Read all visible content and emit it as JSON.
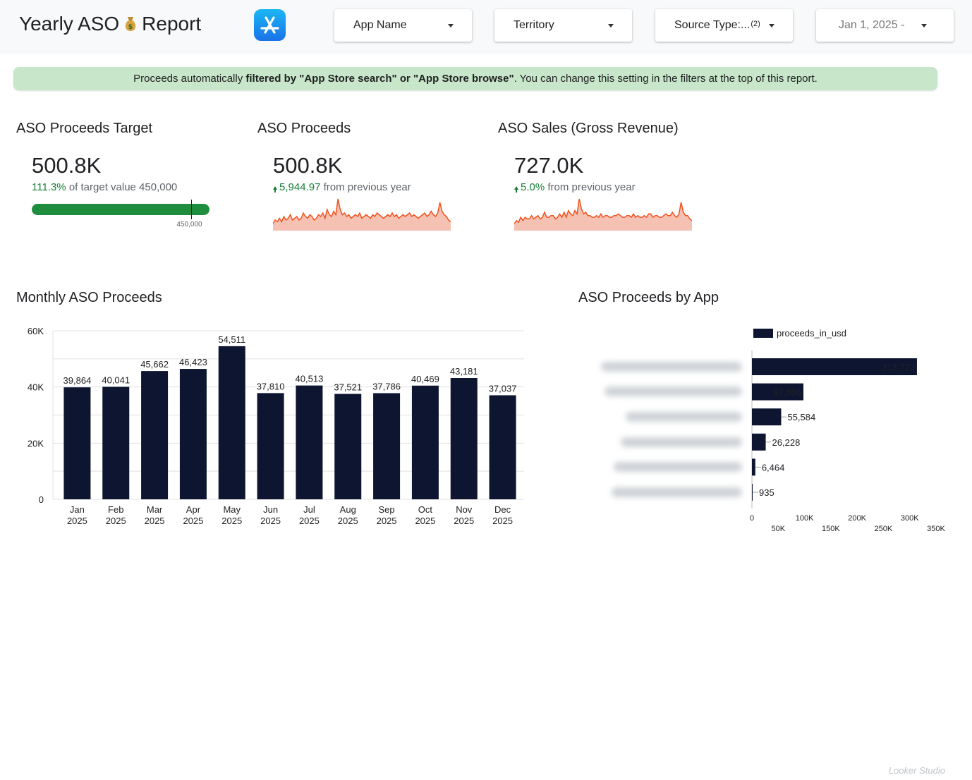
{
  "header": {
    "title_prefix": "Yearly ASO",
    "title_suffix": "Report",
    "emoji": "money-bag",
    "logo": "app-store-icon",
    "filters": [
      {
        "label": "App Name",
        "count": ""
      },
      {
        "label": "Territory",
        "count": ""
      },
      {
        "label": "Source Type:...",
        "count": "(2)"
      },
      {
        "label": "Jan 1, 2025 -",
        "count": ""
      }
    ]
  },
  "banner": {
    "text_before": "Proceeds automatically ",
    "text_bold": "filtered by \"App Store search\" or \"App Store browse\"",
    "text_after": ". You can change this setting in the filters at the top of this report."
  },
  "kpis": {
    "target": {
      "title": "ASO Proceeds Target",
      "value": "500.8K",
      "pct": "111.3%",
      "rest": "of target value 450,000",
      "progress": 1.113,
      "target_label": "450,000",
      "target_fraction": 0.8985
    },
    "proceeds": {
      "title": "ASO Proceeds",
      "value": "500.8K",
      "delta": "5,944.97",
      "rest": "from previous year"
    },
    "sales": {
      "title": "ASO Sales (Gross Revenue)",
      "value": "727.0K",
      "delta": "5.0%",
      "rest": "from previous year"
    }
  },
  "monthly": {
    "title": "Monthly ASO Proceeds"
  },
  "by_app": {
    "title": "ASO Proceeds by App",
    "legend": "proceeds_in_usd"
  },
  "colors": {
    "bar": "#0d1530",
    "spark_line": "#f4511e",
    "spark_fill": "#f5c1b2",
    "progress": "#1e8e3e",
    "banner": "#c8e6c9"
  },
  "chart_data": [
    {
      "type": "bar",
      "title": "Monthly ASO Proceeds",
      "categories": [
        "Jan 2025",
        "Feb 2025",
        "Mar 2025",
        "Apr 2025",
        "May 2025",
        "Jun 2025",
        "Jul 2025",
        "Aug 2025",
        "Sep 2025",
        "Oct 2025",
        "Nov 2025",
        "Dec 2025"
      ],
      "category_lines": [
        [
          "Jan",
          "2025"
        ],
        [
          "Feb",
          "2025"
        ],
        [
          "Mar",
          "2025"
        ],
        [
          "Apr",
          "2025"
        ],
        [
          "May",
          "2025"
        ],
        [
          "Jun",
          "2025"
        ],
        [
          "Jul",
          "2025"
        ],
        [
          "Aug",
          "2025"
        ],
        [
          "Sep",
          "2025"
        ],
        [
          "Oct",
          "2025"
        ],
        [
          "Nov",
          "2025"
        ],
        [
          "Dec",
          "2025"
        ]
      ],
      "values": [
        39864,
        40041,
        45662,
        46423,
        54511,
        37810,
        40513,
        37521,
        37786,
        40469,
        43181,
        37037
      ],
      "value_labels": [
        "39,864",
        "40,041",
        "45,662",
        "46,423",
        "54,511",
        "37,810",
        "40,513",
        "37,521",
        "37,786",
        "40,469",
        "43,181",
        "37,037"
      ],
      "ylim": [
        0,
        60000
      ],
      "yticks": [
        0,
        20000,
        40000,
        60000
      ],
      "ytick_labels": [
        "0",
        "20K",
        "40K",
        "60K"
      ],
      "grid": true
    },
    {
      "type": "bar",
      "orientation": "horizontal",
      "title": "ASO Proceeds by App",
      "series": [
        {
          "name": "proceeds_in_usd",
          "values": [
            313722,
            97886,
            55584,
            26228,
            6464,
            935
          ]
        }
      ],
      "value_labels": [
        "313,722",
        "97,886",
        "55,584",
        "26,228",
        "6,464",
        "935"
      ],
      "xlim": [
        0,
        350000
      ],
      "xticks": [
        0,
        50000,
        100000,
        150000,
        200000,
        250000,
        300000,
        350000
      ],
      "xtick_labels": [
        "0",
        "50K",
        "100K",
        "150K",
        "200K",
        "250K",
        "300K",
        "350K"
      ],
      "legend": "top"
    },
    {
      "type": "area",
      "title": "ASO Proceeds",
      "values": [
        4,
        6,
        5,
        7,
        5,
        8,
        6,
        7,
        9,
        6,
        7,
        8,
        6,
        7,
        10,
        8,
        7,
        9,
        8,
        6,
        7,
        9,
        8,
        10,
        7,
        12,
        9,
        8,
        11,
        9,
        18,
        12,
        9,
        10,
        8,
        9,
        7,
        8,
        9,
        8,
        10,
        7,
        8,
        9,
        8,
        7,
        9,
        8,
        10,
        9,
        8,
        7,
        8,
        9,
        8,
        10,
        8,
        9,
        7,
        8,
        9,
        8,
        9,
        10,
        8,
        9,
        8,
        7,
        8,
        9,
        10,
        8,
        9,
        11,
        9,
        8,
        10,
        16,
        11,
        9,
        8,
        6,
        5
      ]
    },
    {
      "type": "area",
      "title": "ASO Sales (Gross Revenue)",
      "values": [
        4,
        6,
        5,
        8,
        6,
        8,
        7,
        7,
        9,
        7,
        8,
        9,
        7,
        8,
        11,
        8,
        8,
        9,
        9,
        7,
        8,
        10,
        8,
        11,
        8,
        12,
        10,
        9,
        12,
        10,
        19,
        13,
        10,
        11,
        9,
        9,
        8,
        8,
        9,
        8,
        10,
        8,
        9,
        9,
        8,
        8,
        9,
        9,
        10,
        9,
        8,
        8,
        9,
        9,
        8,
        10,
        8,
        9,
        8,
        8,
        9,
        8,
        10,
        10,
        8,
        9,
        9,
        8,
        8,
        9,
        10,
        9,
        9,
        11,
        9,
        8,
        10,
        17,
        11,
        9,
        9,
        7,
        6
      ]
    }
  ]
}
